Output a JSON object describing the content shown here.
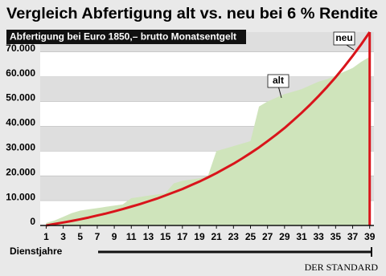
{
  "chart_data": {
    "type": "line",
    "title": "Vergleich Abfertigung alt vs. neu bei 6 % Rendite",
    "subtitle": "Abfertigung bei Euro 1850,– brutto Monatsentgelt",
    "x_label": "Dienstjahre",
    "source": "DER STANDARD",
    "x": [
      1,
      2,
      3,
      4,
      5,
      6,
      7,
      8,
      9,
      10,
      11,
      12,
      13,
      14,
      15,
      16,
      17,
      18,
      19,
      20,
      21,
      22,
      23,
      24,
      25,
      26,
      27,
      28,
      29,
      30,
      31,
      32,
      33,
      34,
      35,
      36,
      37,
      38,
      39
    ],
    "series": [
      {
        "name": "alt",
        "color": "#cfe4bb",
        "fill": true,
        "values": [
          1000,
          2000,
          3500,
          5000,
          6000,
          6500,
          7000,
          7500,
          8000,
          8500,
          11000,
          11500,
          12000,
          12500,
          13000,
          17000,
          18000,
          18500,
          19000,
          20000,
          30000,
          31000,
          32000,
          33000,
          34000,
          48000,
          50000,
          51500,
          53000,
          54000,
          55000,
          56500,
          58000,
          59000,
          60500,
          62000,
          63500,
          66000,
          68000
        ]
      },
      {
        "name": "neu",
        "color": "#d9141b",
        "fill": false,
        "values": [
          0,
          600,
          1200,
          1800,
          2500,
          3200,
          4000,
          4800,
          5700,
          6600,
          7600,
          8600,
          9700,
          10800,
          12100,
          13400,
          14700,
          16200,
          17700,
          19400,
          21100,
          23000,
          24900,
          27000,
          29200,
          31500,
          34000,
          36600,
          39300,
          42300,
          45400,
          48700,
          52200,
          55900,
          59800,
          64000,
          68400,
          73000,
          78000
        ]
      }
    ],
    "xlim": [
      0.3,
      39.5
    ],
    "xticks": [
      1,
      3,
      5,
      7,
      9,
      11,
      13,
      15,
      17,
      19,
      21,
      23,
      25,
      27,
      29,
      31,
      33,
      35,
      37,
      39
    ],
    "ylim": [
      0,
      78000
    ],
    "yticks": [
      0,
      {
        "value": 10000,
        "label": "10.000"
      },
      {
        "value": 20000,
        "label": "20.000"
      },
      {
        "value": 30000,
        "label": "30.000"
      },
      {
        "value": 40000,
        "label": "40.000"
      },
      {
        "value": 50000,
        "label": "50.000"
      },
      {
        "value": 60000,
        "label": "60.000"
      },
      {
        "value": 70000,
        "label": "70.000"
      }
    ],
    "grid": true
  }
}
